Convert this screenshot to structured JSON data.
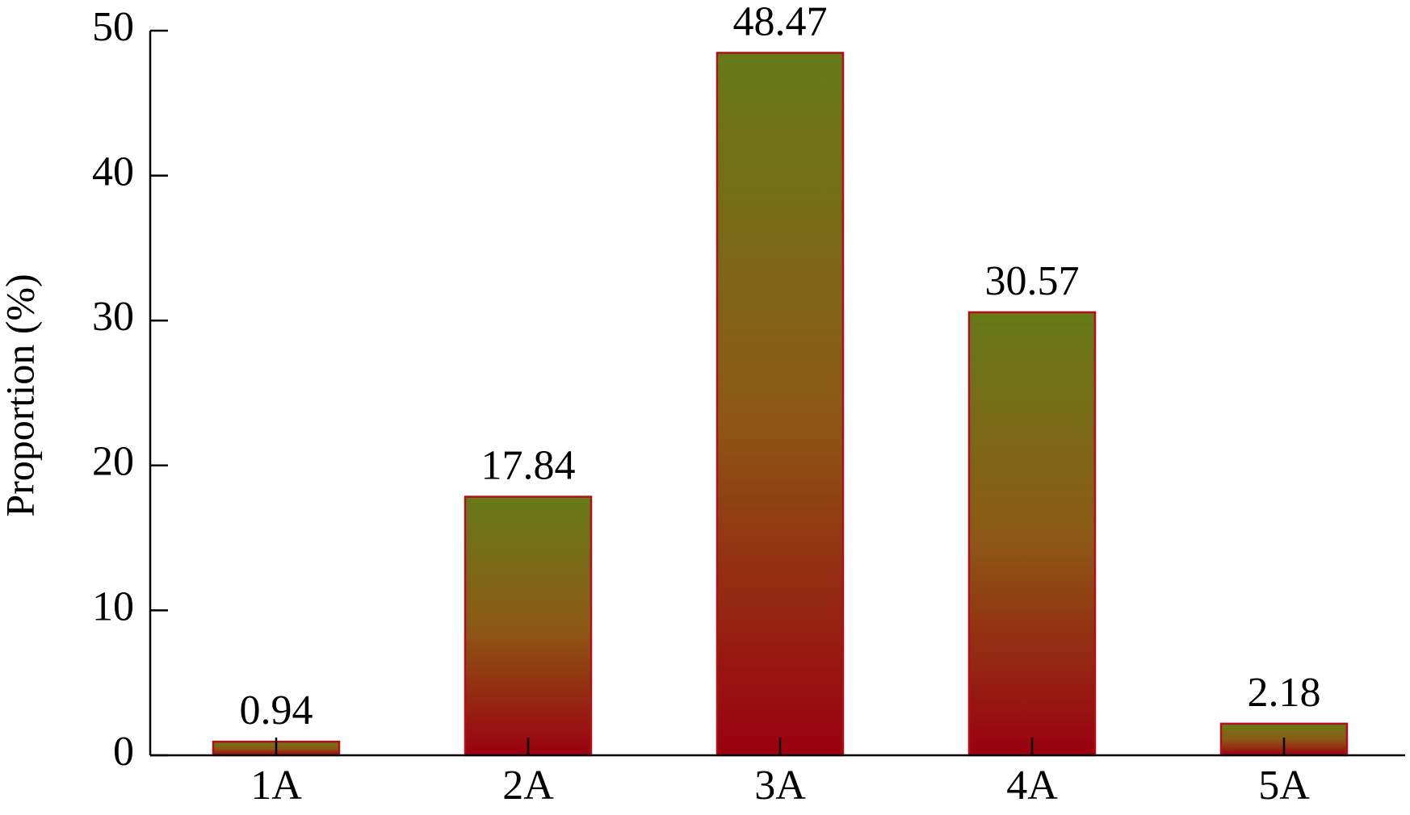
{
  "chart_data": {
    "type": "bar",
    "ylabel": "Proportion (%)",
    "categories": [
      "1A",
      "2A",
      "3A",
      "4A",
      "5A"
    ],
    "values": [
      0.94,
      17.84,
      48.47,
      30.57,
      2.18
    ],
    "gradient": [
      "#9b0010",
      "#8c5a14",
      "#667a18"
    ],
    "edgecolor": "#b0101a",
    "ylim": [
      0,
      50
    ],
    "yticks": [
      0,
      10,
      20,
      30,
      40,
      50
    ],
    "grid": false
  }
}
